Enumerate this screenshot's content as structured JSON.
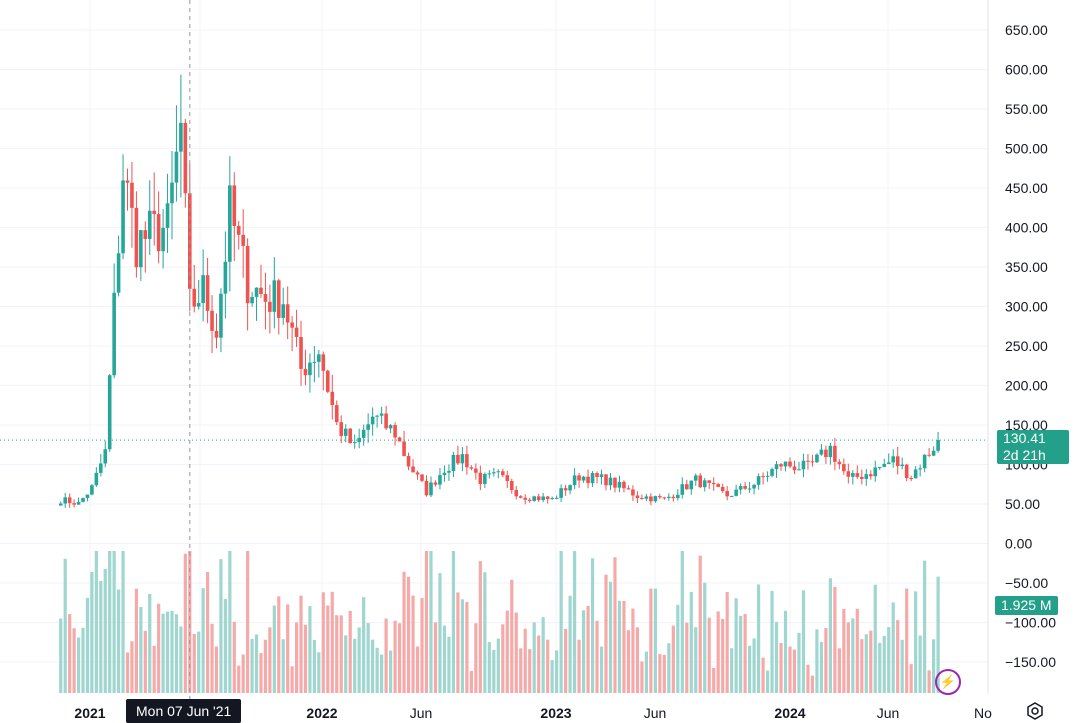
{
  "colors": {
    "up": "#26a69a",
    "down": "#ef5350",
    "up_volume": "#9fd6cf",
    "down_volume": "#f5aaa9",
    "grid": "#f0f3fa",
    "last_price_line": "#26a69a",
    "crosshair": "#9598a1"
  },
  "price_axis_labels": [
    "650.00",
    "600.00",
    "550.00",
    "500.00",
    "450.00",
    "400.00",
    "350.00",
    "300.00",
    "250.00",
    "200.00",
    "150.00",
    "100.00",
    "50.00",
    "0.00",
    "−50.00",
    "−100.00",
    "−150.00"
  ],
  "time_axis_labels": [
    {
      "text": "2021",
      "major": true
    },
    {
      "text": "2022",
      "major": true
    },
    {
      "text": "Jun",
      "major": false
    },
    {
      "text": "2023",
      "major": true
    },
    {
      "text": "Jun",
      "major": false
    },
    {
      "text": "2024",
      "major": true
    },
    {
      "text": "Jun",
      "major": false
    },
    {
      "text": "No",
      "major": false
    }
  ],
  "last_price": "130.41",
  "countdown": "2d 21h",
  "volume_badge": "1.925 M",
  "crosshair_label": "Mon 07 Jun '21",
  "icons": {
    "bolt": "lightning-bolt-icon",
    "settings": "gear-icon"
  },
  "chart_data": {
    "type": "candlestick",
    "interval": "weekly",
    "x_range": [
      "2020-11",
      "2024-10"
    ],
    "ylim": [
      -180,
      670
    ],
    "last_price": 130.41,
    "grid": true,
    "checkpoints": [
      {
        "date": "2020-11-16",
        "close": 55
      },
      {
        "date": "2020-12-14",
        "close": 50
      },
      {
        "date": "2021-01-04",
        "close": 70
      },
      {
        "date": "2021-01-25",
        "close": 115
      },
      {
        "date": "2021-02-08",
        "close": 300
      },
      {
        "date": "2021-02-22",
        "close": 470
      },
      {
        "date": "2021-03-15",
        "close": 380
      },
      {
        "date": "2021-04-12",
        "close": 395
      },
      {
        "date": "2021-05-03",
        "close": 400
      },
      {
        "date": "2021-05-24",
        "close": 525
      },
      {
        "date": "2021-06-07",
        "close": 300
      },
      {
        "date": "2021-06-28",
        "close": 320
      },
      {
        "date": "2021-07-19",
        "close": 270
      },
      {
        "date": "2021-08-09",
        "close": 420
      },
      {
        "date": "2021-09-06",
        "close": 330
      },
      {
        "date": "2021-10-04",
        "close": 310
      },
      {
        "date": "2021-11-01",
        "close": 310
      },
      {
        "date": "2021-11-29",
        "close": 220
      },
      {
        "date": "2021-12-27",
        "close": 245
      },
      {
        "date": "2022-01-24",
        "close": 150
      },
      {
        "date": "2022-02-21",
        "close": 120
      },
      {
        "date": "2022-03-21",
        "close": 160
      },
      {
        "date": "2022-04-25",
        "close": 140
      },
      {
        "date": "2022-05-16",
        "close": 100
      },
      {
        "date": "2022-06-13",
        "close": 65
      },
      {
        "date": "2022-07-11",
        "close": 95
      },
      {
        "date": "2022-08-08",
        "close": 110
      },
      {
        "date": "2022-09-05",
        "close": 80
      },
      {
        "date": "2022-10-03",
        "close": 85
      },
      {
        "date": "2022-11-07",
        "close": 60
      },
      {
        "date": "2022-12-26",
        "close": 55
      },
      {
        "date": "2023-02-06",
        "close": 85
      },
      {
        "date": "2023-03-20",
        "close": 80
      },
      {
        "date": "2023-05-08",
        "close": 60
      },
      {
        "date": "2023-06-19",
        "close": 55
      },
      {
        "date": "2023-08-07",
        "close": 80
      },
      {
        "date": "2023-09-25",
        "close": 60
      },
      {
        "date": "2023-11-06",
        "close": 75
      },
      {
        "date": "2023-12-18",
        "close": 100
      },
      {
        "date": "2024-01-29",
        "close": 95
      },
      {
        "date": "2024-03-04",
        "close": 120
      },
      {
        "date": "2024-04-01",
        "close": 80
      },
      {
        "date": "2024-05-06",
        "close": 90
      },
      {
        "date": "2024-06-10",
        "close": 105
      },
      {
        "date": "2024-07-08",
        "close": 85
      },
      {
        "date": "2024-08-05",
        "close": 115
      },
      {
        "date": "2024-08-19",
        "close": 130.41
      }
    ],
    "volume_axis": {
      "label_values": [
        0,
        -50,
        -100,
        -150
      ],
      "last_volume": "1.925 M"
    }
  }
}
